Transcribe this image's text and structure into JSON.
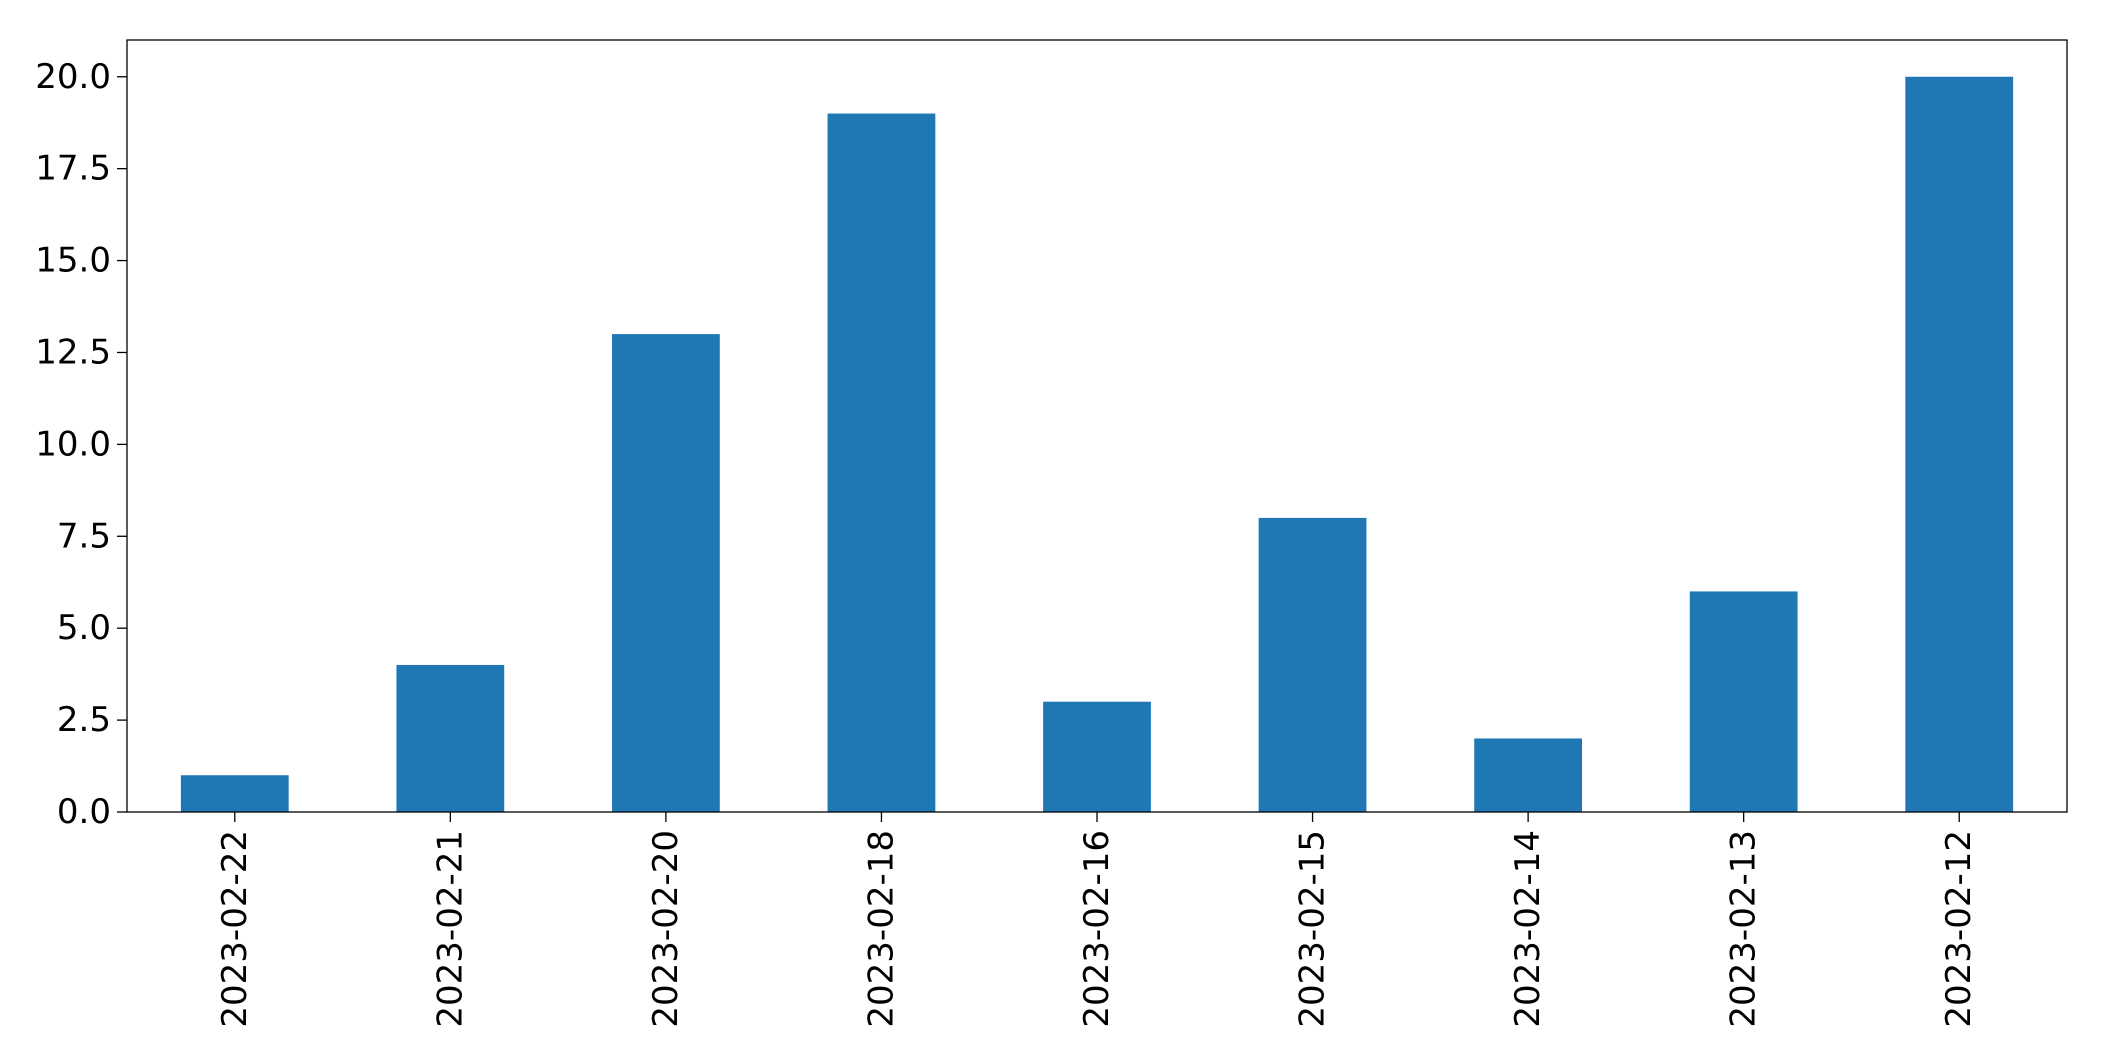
{
  "chart_data": {
    "type": "bar",
    "title": "",
    "xlabel": "",
    "ylabel": "",
    "categories": [
      "2023-02-22",
      "2023-02-21",
      "2023-02-20",
      "2023-02-18",
      "2023-02-16",
      "2023-02-15",
      "2023-02-14",
      "2023-02-13",
      "2023-02-12"
    ],
    "values": [
      1,
      4,
      13,
      19,
      3,
      8,
      2,
      6,
      20
    ],
    "ylim": [
      0,
      21
    ],
    "yticks": [
      0,
      2.5,
      5,
      7.5,
      10,
      12.5,
      15,
      17.5,
      20
    ],
    "ytick_labels": [
      "0.0",
      "2.5",
      "5.0",
      "7.5",
      "10.0",
      "12.5",
      "15.0",
      "17.5",
      "20.0"
    ],
    "bar_color": "#1f77b4",
    "grid": false,
    "legend": "none"
  }
}
